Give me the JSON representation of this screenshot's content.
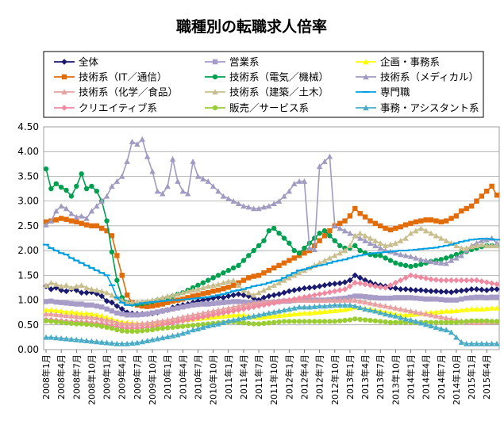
{
  "chart_data": {
    "type": "line",
    "title": "職種別の転職求人倍率",
    "ylim": [
      0,
      4.5
    ],
    "y_ticks": [
      "0.00",
      "0.50",
      "1.00",
      "1.50",
      "2.00",
      "2.50",
      "3.00",
      "3.50",
      "4.00",
      "4.50"
    ],
    "x_tick_labels": [
      "2008年1月",
      "2008年4月",
      "2008年7月",
      "2008年10月",
      "2009年1月",
      "2009年4月",
      "2009年7月",
      "2009年10月",
      "2010年1月",
      "2010年4月",
      "2010年7月",
      "2010年10月",
      "2011年1月",
      "2011年4月",
      "2011年7月",
      "2011年10月",
      "2012年1月",
      "2012年4月",
      "2012年7月",
      "2012年10月",
      "2013年1月",
      "2013年4月",
      "2013年7月",
      "2013年10月",
      "2014年1月",
      "2014年4月",
      "2014年7月",
      "2014年10月",
      "2015年1月",
      "2015年4月"
    ],
    "months": 90,
    "series": [
      {
        "name": "全体",
        "color": "#1a1a6e",
        "marker": "diamond",
        "values": [
          1.28,
          1.22,
          1.25,
          1.2,
          1.18,
          1.22,
          1.2,
          1.15,
          1.15,
          1.16,
          1.13,
          1.08,
          0.98,
          0.95,
          0.88,
          0.82,
          0.75,
          0.73,
          0.72,
          0.72,
          0.72,
          0.73,
          0.75,
          0.78,
          0.8,
          0.85,
          0.88,
          0.9,
          0.92,
          0.95,
          0.98,
          1.0,
          1.02,
          1.04,
          1.06,
          1.05,
          1.08,
          1.1,
          1.12,
          1.1,
          1.08,
          1.04,
          1.0,
          1.05,
          1.08,
          1.1,
          1.12,
          1.15,
          1.18,
          1.2,
          1.22,
          1.24,
          1.25,
          1.26,
          1.28,
          1.3,
          1.32,
          1.33,
          1.34,
          1.36,
          1.4,
          1.5,
          1.45,
          1.4,
          1.36,
          1.32,
          1.3,
          1.28,
          1.25,
          1.24,
          1.22,
          1.22,
          1.21,
          1.2,
          1.2,
          1.19,
          1.18,
          1.18,
          1.17,
          1.17,
          1.16,
          1.18,
          1.19,
          1.2,
          1.22,
          1.22,
          1.21,
          1.2,
          1.22,
          1.22
        ]
      },
      {
        "name": "営業系",
        "color": "#a79bc8",
        "marker": "square",
        "values": [
          0.97,
          0.98,
          0.96,
          0.95,
          0.94,
          0.93,
          0.92,
          0.92,
          0.9,
          0.9,
          0.88,
          0.86,
          0.82,
          0.78,
          0.74,
          0.72,
          0.7,
          0.7,
          0.7,
          0.71,
          0.72,
          0.74,
          0.76,
          0.78,
          0.8,
          0.82,
          0.84,
          0.86,
          0.88,
          0.9,
          0.91,
          0.92,
          0.92,
          0.93,
          0.94,
          0.95,
          0.96,
          0.97,
          0.97,
          0.96,
          0.95,
          0.94,
          0.94,
          0.95,
          0.95,
          0.96,
          0.97,
          0.98,
          0.98,
          0.99,
          1.0,
          1.0,
          1.0,
          1.0,
          1.0,
          1.0,
          1.01,
          1.02,
          1.03,
          1.04,
          1.06,
          1.08,
          1.08,
          1.07,
          1.06,
          1.05,
          1.04,
          1.04,
          1.04,
          1.05,
          1.05,
          1.05,
          1.05,
          1.04,
          1.03,
          1.02,
          1.02,
          1.02,
          1.01,
          1.0,
          1.0,
          1.0,
          1.02,
          1.04,
          1.05,
          1.06,
          1.06,
          1.05,
          1.06,
          1.06
        ]
      },
      {
        "name": "企画・事務系",
        "color": "#ffff00",
        "marker": "triangle",
        "values": [
          0.8,
          0.8,
          0.79,
          0.78,
          0.76,
          0.76,
          0.74,
          0.73,
          0.73,
          0.72,
          0.7,
          0.68,
          0.65,
          0.62,
          0.58,
          0.56,
          0.55,
          0.54,
          0.53,
          0.53,
          0.53,
          0.54,
          0.55,
          0.56,
          0.57,
          0.58,
          0.59,
          0.6,
          0.61,
          0.62,
          0.63,
          0.64,
          0.65,
          0.66,
          0.67,
          0.68,
          0.69,
          0.7,
          0.7,
          0.7,
          0.68,
          0.66,
          0.65,
          0.66,
          0.67,
          0.68,
          0.69,
          0.7,
          0.71,
          0.72,
          0.73,
          0.74,
          0.74,
          0.75,
          0.76,
          0.77,
          0.78,
          0.79,
          0.8,
          0.81,
          0.83,
          0.86,
          0.85,
          0.83,
          0.82,
          0.8,
          0.78,
          0.76,
          0.74,
          0.72,
          0.7,
          0.7,
          0.71,
          0.72,
          0.73,
          0.74,
          0.75,
          0.76,
          0.77,
          0.78,
          0.78,
          0.79,
          0.8,
          0.81,
          0.82,
          0.82,
          0.82,
          0.83,
          0.84,
          0.84
        ]
      },
      {
        "name": "技術系（IT／通信）",
        "color": "#e36c0a",
        "marker": "square",
        "values": [
          2.58,
          2.6,
          2.62,
          2.65,
          2.63,
          2.6,
          2.58,
          2.55,
          2.52,
          2.5,
          2.5,
          2.45,
          2.4,
          2.3,
          1.9,
          1.5,
          1.1,
          0.95,
          0.9,
          0.88,
          0.87,
          0.88,
          0.9,
          0.92,
          0.95,
          0.98,
          1.0,
          1.02,
          1.05,
          1.08,
          1.1,
          1.13,
          1.15,
          1.18,
          1.2,
          1.23,
          1.26,
          1.3,
          1.35,
          1.4,
          1.45,
          1.48,
          1.5,
          1.55,
          1.6,
          1.65,
          1.7,
          1.75,
          1.8,
          1.85,
          1.9,
          1.95,
          2.0,
          2.1,
          2.2,
          2.3,
          2.4,
          2.5,
          2.55,
          2.6,
          2.7,
          2.85,
          2.75,
          2.68,
          2.6,
          2.55,
          2.5,
          2.45,
          2.42,
          2.45,
          2.48,
          2.52,
          2.55,
          2.58,
          2.6,
          2.62,
          2.62,
          2.6,
          2.58,
          2.6,
          2.65,
          2.7,
          2.8,
          2.85,
          2.9,
          3.0,
          3.1,
          3.2,
          3.3,
          3.12
        ]
      },
      {
        "name": "技術系（電気／機械）",
        "color": "#00a050",
        "marker": "circle",
        "values": [
          3.65,
          3.25,
          3.35,
          3.28,
          3.22,
          3.1,
          3.3,
          3.55,
          3.25,
          3.3,
          3.2,
          3.0,
          2.6,
          1.97,
          1.4,
          1.05,
          0.95,
          0.92,
          0.92,
          0.93,
          0.95,
          0.97,
          1.0,
          1.02,
          1.05,
          1.08,
          1.12,
          1.15,
          1.2,
          1.25,
          1.3,
          1.35,
          1.4,
          1.45,
          1.5,
          1.55,
          1.6,
          1.65,
          1.7,
          1.8,
          1.9,
          2.0,
          2.1,
          2.2,
          2.4,
          2.45,
          2.35,
          2.25,
          2.15,
          2.0,
          1.95,
          2.05,
          2.15,
          2.25,
          2.35,
          2.4,
          2.3,
          2.2,
          2.1,
          2.05,
          2.05,
          2.1,
          2.0,
          1.95,
          1.92,
          1.9,
          1.9,
          1.85,
          1.8,
          1.75,
          1.72,
          1.7,
          1.68,
          1.7,
          1.72,
          1.75,
          1.78,
          1.8,
          1.82,
          1.85,
          1.88,
          1.92,
          1.95,
          1.98,
          2.02,
          2.05,
          2.08,
          2.1,
          2.1,
          2.1
        ]
      },
      {
        "name": "技術系（メディカル）",
        "color": "#a09bc0",
        "marker": "triangle",
        "values": [
          2.52,
          2.6,
          2.8,
          2.9,
          2.85,
          2.75,
          2.68,
          2.7,
          2.65,
          2.8,
          2.9,
          3.0,
          3.1,
          3.3,
          3.4,
          3.5,
          3.8,
          4.2,
          4.15,
          4.25,
          3.9,
          3.6,
          3.2,
          3.15,
          3.3,
          3.85,
          3.4,
          3.2,
          3.15,
          3.8,
          3.5,
          3.45,
          3.4,
          3.3,
          3.2,
          3.1,
          3.05,
          3.0,
          2.95,
          2.9,
          2.88,
          2.85,
          2.85,
          2.88,
          2.9,
          2.95,
          3.0,
          3.1,
          3.2,
          3.35,
          3.4,
          3.4,
          2.05,
          2.02,
          3.7,
          3.8,
          3.9,
          2.5,
          2.45,
          2.4,
          2.35,
          2.3,
          2.25,
          2.2,
          2.15,
          2.1,
          2.05,
          2.0,
          1.98,
          1.95,
          1.92,
          1.9,
          1.88,
          1.85,
          1.82,
          1.8,
          1.78,
          1.76,
          1.75,
          1.74,
          1.8,
          1.85,
          1.9,
          2.0,
          2.1,
          2.15,
          2.2,
          2.22,
          2.25,
          2.15
        ]
      },
      {
        "name": "技術系（化学／食品）",
        "color": "#e8a0a0",
        "marker": "triangle",
        "values": [
          0.72,
          0.72,
          0.71,
          0.7,
          0.69,
          0.68,
          0.67,
          0.66,
          0.66,
          0.65,
          0.64,
          0.62,
          0.6,
          0.58,
          0.55,
          0.53,
          0.52,
          0.52,
          0.52,
          0.53,
          0.54,
          0.55,
          0.57,
          0.58,
          0.6,
          0.62,
          0.64,
          0.66,
          0.68,
          0.7,
          0.72,
          0.74,
          0.76,
          0.78,
          0.8,
          0.82,
          0.84,
          0.86,
          0.88,
          0.9,
          0.92,
          0.94,
          0.95,
          0.96,
          0.97,
          0.98,
          0.99,
          1.0,
          1.0,
          1.0,
          1.0,
          1.0,
          1.0,
          1.0,
          1.0,
          1.0,
          1.0,
          1.0,
          1.0,
          1.0,
          1.0,
          1.0,
          0.98,
          0.96,
          0.94,
          0.92,
          0.9,
          0.88,
          0.86,
          0.84,
          0.82,
          0.8,
          0.78,
          0.76,
          0.74,
          0.72,
          0.7,
          0.68,
          0.66,
          0.64,
          0.62,
          0.6,
          0.58,
          0.56,
          0.55,
          0.55,
          0.55,
          0.56,
          0.56,
          0.56
        ]
      },
      {
        "name": "技術系（建築／土木）",
        "color": "#c9bf8e",
        "marker": "triangle",
        "values": [
          1.3,
          1.35,
          1.32,
          1.28,
          1.3,
          1.25,
          1.28,
          1.3,
          1.25,
          1.22,
          1.2,
          1.18,
          1.15,
          1.1,
          1.05,
          1.0,
          0.95,
          0.95,
          0.96,
          0.97,
          0.98,
          1.0,
          1.02,
          1.05,
          1.08,
          1.1,
          1.12,
          1.15,
          1.18,
          1.2,
          1.22,
          1.25,
          1.28,
          1.3,
          1.32,
          1.35,
          1.38,
          1.4,
          1.3,
          1.2,
          1.15,
          1.1,
          1.15,
          1.2,
          1.25,
          1.3,
          1.35,
          1.4,
          1.45,
          1.5,
          1.55,
          1.6,
          1.65,
          1.7,
          1.75,
          1.8,
          1.85,
          1.9,
          1.95,
          2.0,
          2.1,
          2.3,
          2.35,
          2.3,
          2.25,
          2.2,
          2.15,
          2.1,
          2.12,
          2.15,
          2.2,
          2.25,
          2.35,
          2.4,
          2.45,
          2.4,
          2.35,
          2.3,
          2.25,
          2.2,
          2.15,
          2.1,
          2.05,
          2.05,
          2.08,
          2.1,
          2.12,
          2.1,
          2.1,
          2.1
        ]
      },
      {
        "name": "専門職",
        "color": "#00a0e0",
        "marker": "dash",
        "values": [
          2.12,
          2.05,
          2.0,
          1.95,
          1.92,
          1.85,
          1.8,
          1.75,
          1.7,
          1.65,
          1.6,
          1.55,
          1.5,
          1.3,
          1.05,
          0.95,
          0.9,
          0.9,
          0.92,
          0.94,
          0.95,
          0.96,
          0.97,
          0.98,
          0.99,
          1.0,
          1.0,
          1.01,
          1.02,
          1.03,
          1.04,
          1.05,
          1.06,
          1.08,
          1.1,
          1.12,
          1.15,
          1.18,
          1.2,
          1.22,
          1.25,
          1.28,
          1.3,
          1.32,
          1.35,
          1.38,
          1.4,
          1.45,
          1.5,
          1.55,
          1.6,
          1.62,
          1.65,
          1.68,
          1.7,
          1.72,
          1.75,
          1.78,
          1.8,
          1.82,
          1.85,
          1.88,
          1.9,
          1.92,
          1.94,
          1.95,
          1.96,
          1.97,
          1.98,
          1.99,
          2.0,
          2.0,
          2.01,
          2.02,
          2.03,
          2.04,
          2.05,
          2.06,
          2.08,
          2.1,
          2.12,
          2.15,
          2.18,
          2.2,
          2.22,
          2.23,
          2.24,
          2.24,
          2.23,
          2.22
        ]
      },
      {
        "name": "クリエイティブ系",
        "color": "#f08aa0",
        "marker": "diamond",
        "values": [
          0.6,
          0.6,
          0.59,
          0.58,
          0.57,
          0.56,
          0.56,
          0.55,
          0.55,
          0.54,
          0.53,
          0.52,
          0.5,
          0.48,
          0.46,
          0.44,
          0.43,
          0.43,
          0.43,
          0.44,
          0.45,
          0.46,
          0.48,
          0.5,
          0.52,
          0.54,
          0.56,
          0.58,
          0.6,
          0.62,
          0.64,
          0.66,
          0.68,
          0.7,
          0.72,
          0.74,
          0.76,
          0.78,
          0.8,
          0.82,
          0.84,
          0.86,
          0.88,
          0.9,
          0.92,
          0.94,
          0.96,
          0.98,
          1.0,
          1.02,
          1.04,
          1.06,
          1.08,
          1.1,
          1.12,
          1.14,
          1.16,
          1.18,
          1.2,
          1.22,
          1.28,
          1.35,
          1.34,
          1.32,
          1.3,
          1.28,
          1.26,
          1.25,
          1.3,
          1.35,
          1.4,
          1.45,
          1.5,
          1.48,
          1.46,
          1.44,
          1.42,
          1.41,
          1.4,
          1.4,
          1.4,
          1.4,
          1.4,
          1.4,
          1.4,
          1.4,
          1.38,
          1.36,
          1.34,
          1.32
        ]
      },
      {
        "name": "販売／サービス系",
        "color": "#9acd32",
        "marker": "circle",
        "values": [
          0.58,
          0.57,
          0.56,
          0.55,
          0.54,
          0.53,
          0.52,
          0.52,
          0.51,
          0.5,
          0.49,
          0.47,
          0.45,
          0.43,
          0.4,
          0.38,
          0.37,
          0.37,
          0.37,
          0.38,
          0.39,
          0.4,
          0.42,
          0.43,
          0.44,
          0.45,
          0.46,
          0.47,
          0.48,
          0.49,
          0.5,
          0.51,
          0.52,
          0.53,
          0.54,
          0.55,
          0.56,
          0.56,
          0.55,
          0.54,
          0.53,
          0.52,
          0.52,
          0.53,
          0.54,
          0.55,
          0.56,
          0.57,
          0.57,
          0.57,
          0.57,
          0.57,
          0.57,
          0.57,
          0.57,
          0.57,
          0.57,
          0.57,
          0.58,
          0.59,
          0.6,
          0.62,
          0.61,
          0.6,
          0.59,
          0.58,
          0.57,
          0.56,
          0.55,
          0.55,
          0.55,
          0.55,
          0.55,
          0.55,
          0.55,
          0.55,
          0.55,
          0.55,
          0.55,
          0.55,
          0.55,
          0.55,
          0.56,
          0.57,
          0.58,
          0.58,
          0.58,
          0.58,
          0.57,
          0.57
        ]
      },
      {
        "name": "事務・アシスタント系",
        "color": "#4aacc6",
        "marker": "triangle",
        "values": [
          0.25,
          0.25,
          0.24,
          0.23,
          0.22,
          0.21,
          0.2,
          0.19,
          0.18,
          0.17,
          0.16,
          0.15,
          0.14,
          0.13,
          0.12,
          0.12,
          0.12,
          0.13,
          0.14,
          0.16,
          0.18,
          0.2,
          0.22,
          0.24,
          0.26,
          0.28,
          0.3,
          0.33,
          0.36,
          0.4,
          0.42,
          0.45,
          0.48,
          0.5,
          0.52,
          0.55,
          0.58,
          0.6,
          0.62,
          0.64,
          0.66,
          0.68,
          0.7,
          0.72,
          0.74,
          0.76,
          0.78,
          0.8,
          0.82,
          0.84,
          0.86,
          0.86,
          0.86,
          0.87,
          0.88,
          0.88,
          0.89,
          0.9,
          0.9,
          0.9,
          0.9,
          0.88,
          0.85,
          0.82,
          0.8,
          0.78,
          0.75,
          0.72,
          0.7,
          0.68,
          0.65,
          0.62,
          0.6,
          0.57,
          0.54,
          0.51,
          0.48,
          0.45,
          0.42,
          0.4,
          0.35,
          0.25,
          0.15,
          0.12,
          0.12,
          0.12,
          0.12,
          0.12,
          0.12,
          0.12
        ]
      }
    ]
  }
}
